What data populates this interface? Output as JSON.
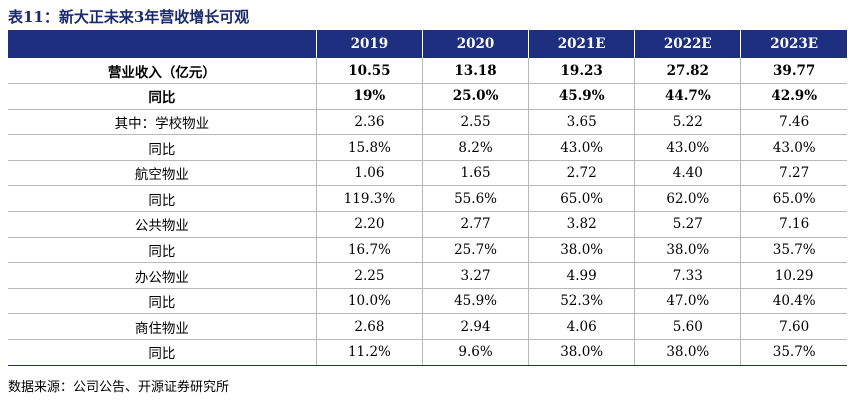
{
  "title": "表11：新大正未来3年营收增长可观",
  "table": {
    "header": [
      "",
      "2019",
      "2020",
      "2021E",
      "2022E",
      "2023E"
    ],
    "rows": [
      {
        "label": "营业收入（亿元）",
        "bold": true,
        "values": [
          "10.55",
          "13.18",
          "19.23",
          "27.82",
          "39.77"
        ]
      },
      {
        "label": "同比",
        "bold": true,
        "values": [
          "19%",
          "25.0%",
          "45.9%",
          "44.7%",
          "42.9%"
        ]
      },
      {
        "label": "其中：学校物业",
        "bold": false,
        "values": [
          "2.36",
          "2.55",
          "3.65",
          "5.22",
          "7.46"
        ]
      },
      {
        "label": "同比",
        "bold": false,
        "values": [
          "15.8%",
          "8.2%",
          "43.0%",
          "43.0%",
          "43.0%"
        ]
      },
      {
        "label": "航空物业",
        "bold": false,
        "values": [
          "1.06",
          "1.65",
          "2.72",
          "4.40",
          "7.27"
        ]
      },
      {
        "label": "同比",
        "bold": false,
        "values": [
          "119.3%",
          "55.6%",
          "65.0%",
          "62.0%",
          "65.0%"
        ]
      },
      {
        "label": "公共物业",
        "bold": false,
        "values": [
          "2.20",
          "2.77",
          "3.82",
          "5.27",
          "7.16"
        ]
      },
      {
        "label": "同比",
        "bold": false,
        "values": [
          "16.7%",
          "25.7%",
          "38.0%",
          "38.0%",
          "35.7%"
        ]
      },
      {
        "label": "办公物业",
        "bold": false,
        "values": [
          "2.25",
          "3.27",
          "4.99",
          "7.33",
          "10.29"
        ]
      },
      {
        "label": "同比",
        "bold": false,
        "values": [
          "10.0%",
          "45.9%",
          "52.3%",
          "47.0%",
          "40.4%"
        ]
      },
      {
        "label": "商住物业",
        "bold": false,
        "values": [
          "2.68",
          "2.94",
          "4.06",
          "5.60",
          "7.60"
        ]
      },
      {
        "label": "同比",
        "bold": false,
        "values": [
          "11.2%",
          "9.6%",
          "38.0%",
          "38.0%",
          "35.7%"
        ]
      }
    ]
  },
  "source": "数据来源：公司公告、开源证券研究所",
  "colors": {
    "header_bg": "#1f2f7f",
    "title": "#1a2a6c"
  }
}
